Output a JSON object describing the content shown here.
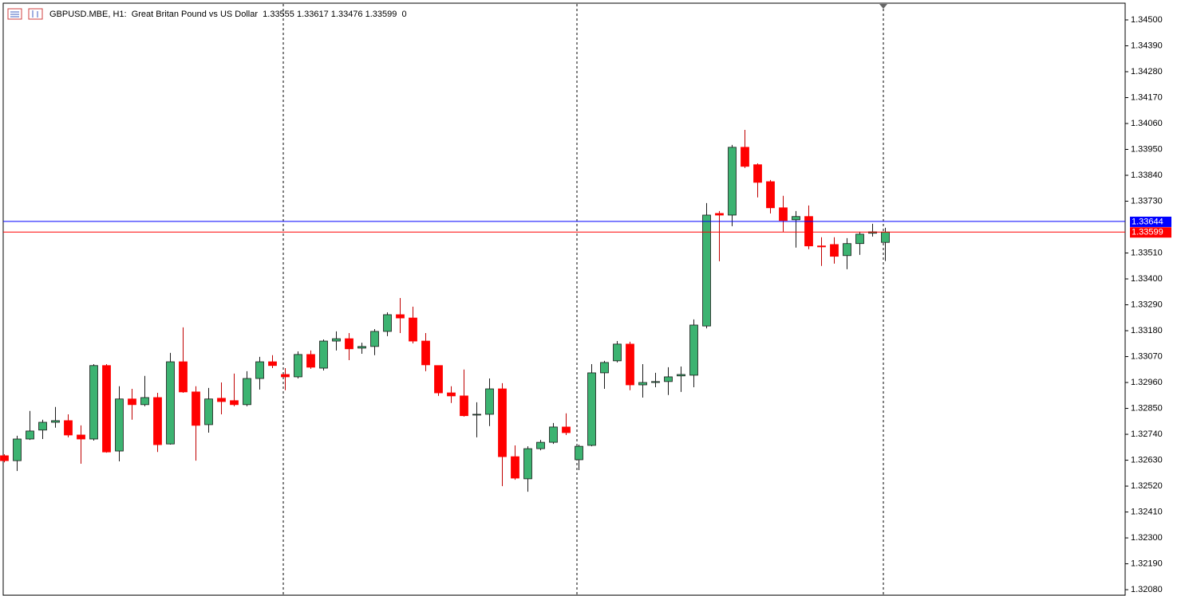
{
  "chart_data": {
    "type": "candlestick",
    "title": "GBPUSD.MBE, H1:  Great Britan Pound vs US Dollar  1.33555 1.33617 1.33476 1.33599  0",
    "up_color": "#3cb371",
    "down_color": "#ff0000",
    "ylim": [
      1.3206,
      1.34571
    ],
    "yticks": [
      {
        "value": 1.345,
        "label": "1.34500"
      },
      {
        "value": 1.3439,
        "label": "1.34390"
      },
      {
        "value": 1.3428,
        "label": "1.34280"
      },
      {
        "value": 1.3417,
        "label": "1.34170"
      },
      {
        "value": 1.3406,
        "label": "1.34060"
      },
      {
        "value": 1.3395,
        "label": "1.33950"
      },
      {
        "value": 1.3384,
        "label": "1.33840"
      },
      {
        "value": 1.3373,
        "label": "1.33730"
      },
      {
        "value": 1.3351,
        "label": "1.33510"
      },
      {
        "value": 1.334,
        "label": "1.33400"
      },
      {
        "value": 1.3329,
        "label": "1.33290"
      },
      {
        "value": 1.3318,
        "label": "1.33180"
      },
      {
        "value": 1.3307,
        "label": "1.33070"
      },
      {
        "value": 1.3296,
        "label": "1.32960"
      },
      {
        "value": 1.3285,
        "label": "1.32850"
      },
      {
        "value": 1.3274,
        "label": "1.32740"
      },
      {
        "value": 1.3263,
        "label": "1.32630"
      },
      {
        "value": 1.3252,
        "label": "1.32520"
      },
      {
        "value": 1.3241,
        "label": "1.32410"
      },
      {
        "value": 1.323,
        "label": "1.32300"
      },
      {
        "value": 1.3219,
        "label": "1.32190"
      },
      {
        "value": 1.3208,
        "label": "1.32080"
      }
    ],
    "price_lines": [
      {
        "value": 1.33644,
        "label": "1.33644",
        "color": "#0000ff"
      },
      {
        "value": 1.33599,
        "label": "1.33599",
        "color": "#ff0000"
      }
    ],
    "open": [
      1.32649,
      1.32628,
      1.3272,
      1.32758,
      1.32791,
      1.32798,
      1.32737,
      1.3272,
      1.33032,
      1.32669,
      1.3289,
      1.32866,
      1.32896,
      1.32699,
      1.33048,
      1.3292,
      1.32781,
      1.32893,
      1.32883,
      1.32866,
      1.32977,
      1.33048,
      1.32994,
      1.32984,
      1.33079,
      1.33021,
      1.33136,
      1.33146,
      1.33106,
      1.33113,
      1.33177,
      1.33248,
      1.33234,
      1.33136,
      1.33032,
      1.32916,
      1.32903,
      1.32822,
      1.32825,
      1.32933,
      1.32645,
      1.32551,
      1.32679,
      1.32706,
      1.32771,
      1.32632,
      1.32693,
      1.33001,
      1.33052,
      1.33123,
      1.3295,
      1.3296,
      1.32964,
      1.32988,
      1.32991,
      1.332,
      1.33678,
      1.33671,
      1.33959,
      1.33885,
      1.33813,
      1.33702,
      1.33651,
      1.33665,
      1.3354,
      1.33546,
      1.33499,
      1.3355,
      1.33594,
      1.33555
    ],
    "high": [
      1.32655,
      1.32734,
      1.32839,
      1.32802,
      1.32856,
      1.32825,
      1.32778,
      1.33038,
      1.33038,
      1.32944,
      1.32933,
      1.32988,
      1.32916,
      1.33086,
      1.33194,
      1.32944,
      1.32937,
      1.3296,
      1.32998,
      1.33008,
      1.33069,
      1.33076,
      1.33021,
      1.33092,
      1.33096,
      1.33143,
      1.33177,
      1.3317,
      1.33129,
      1.33187,
      1.33258,
      1.33319,
      1.33282,
      1.3317,
      1.33032,
      1.32944,
      1.33015,
      1.32876,
      1.32977,
      1.32957,
      1.32693,
      1.32689,
      1.32716,
      1.32788,
      1.32829,
      1.32696,
      1.33038,
      1.33052,
      1.33136,
      1.33133,
      1.33038,
      1.33001,
      1.33025,
      1.33028,
      1.33228,
      1.33722,
      1.33688,
      1.33969,
      1.34033,
      1.33891,
      1.3382,
      1.33753,
      1.33688,
      1.33712,
      1.33577,
      1.33577,
      1.33573,
      1.336,
      1.33634,
      1.33617
    ],
    "low": [
      1.32621,
      1.32584,
      1.32716,
      1.3272,
      1.32768,
      1.32727,
      1.32615,
      1.32713,
      1.32662,
      1.32625,
      1.32802,
      1.32859,
      1.32665,
      1.32696,
      1.32916,
      1.32628,
      1.32747,
      1.32825,
      1.32859,
      1.32859,
      1.3293,
      1.33021,
      1.32927,
      1.32977,
      1.33018,
      1.33011,
      1.33096,
      1.33055,
      1.33082,
      1.33076,
      1.33157,
      1.3317,
      1.33126,
      1.33008,
      1.32903,
      1.32873,
      1.32815,
      1.32727,
      1.32775,
      1.3252,
      1.32547,
      1.32496,
      1.32672,
      1.32699,
      1.32737,
      1.32588,
      1.32689,
      1.32933,
      1.33045,
      1.32927,
      1.32896,
      1.3294,
      1.32907,
      1.3292,
      1.3294,
      1.3319,
      1.33475,
      1.33624,
      1.33871,
      1.33746,
      1.33678,
      1.336,
      1.33533,
      1.33526,
      1.33455,
      1.33465,
      1.33441,
      1.33502,
      1.3358,
      1.33476
    ],
    "close": [
      1.32628,
      1.3272,
      1.32754,
      1.32791,
      1.32798,
      1.32737,
      1.3272,
      1.33032,
      1.32665,
      1.3289,
      1.32866,
      1.32896,
      1.32696,
      1.33048,
      1.3292,
      1.32778,
      1.3289,
      1.32879,
      1.32866,
      1.32977,
      1.33048,
      1.33032,
      1.32984,
      1.33079,
      1.33025,
      1.33136,
      1.33146,
      1.33103,
      1.33113,
      1.33177,
      1.33248,
      1.33234,
      1.33136,
      1.33035,
      1.32916,
      1.32903,
      1.32819,
      1.32825,
      1.32933,
      1.32645,
      1.32554,
      1.32679,
      1.32706,
      1.32771,
      1.32747,
      1.32689,
      1.33001,
      1.33045,
      1.33123,
      1.3295,
      1.3296,
      1.32964,
      1.32984,
      1.32994,
      1.33204,
      1.33671,
      1.33671,
      1.33959,
      1.33878,
      1.3381,
      1.33702,
      1.33648,
      1.33665,
      1.3354,
      1.33536,
      1.33496,
      1.3355,
      1.3359,
      1.336,
      1.33599
    ]
  }
}
